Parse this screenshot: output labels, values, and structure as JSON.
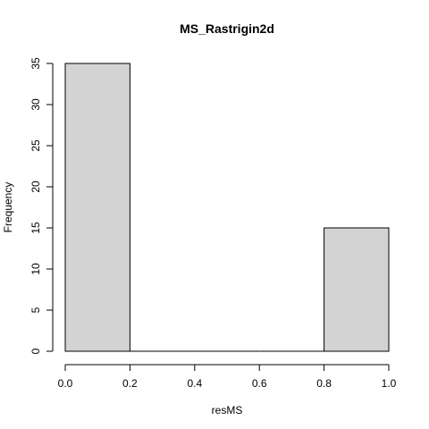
{
  "chart_data": {
    "type": "bar",
    "title": "MS_Rastrigin2d",
    "xlabel": "resMS",
    "ylabel": "Frequency",
    "bins": [
      {
        "from": 0.0,
        "to": 0.2,
        "count": 35
      },
      {
        "from": 0.2,
        "to": 0.4,
        "count": 0
      },
      {
        "from": 0.4,
        "to": 0.6,
        "count": 0
      },
      {
        "from": 0.6,
        "to": 0.8,
        "count": 0
      },
      {
        "from": 0.8,
        "to": 1.0,
        "count": 15
      }
    ],
    "xlim": [
      0,
      1
    ],
    "ylim": [
      0,
      35
    ],
    "x_ticks": [
      "0.0",
      "0.2",
      "0.4",
      "0.6",
      "0.8",
      "1.0"
    ],
    "y_ticks": [
      "0",
      "5",
      "10",
      "15",
      "20",
      "25",
      "30",
      "35"
    ],
    "bar_color": "#d3d3d3",
    "grid": false
  }
}
